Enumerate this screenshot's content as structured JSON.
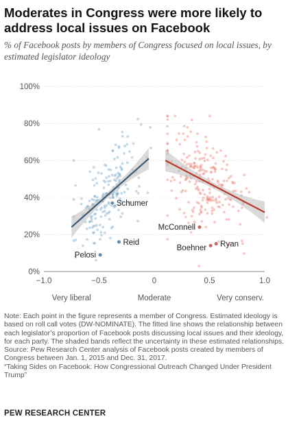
{
  "header": {
    "title": "Moderates in Congress were more likely to address local issues on Facebook",
    "subtitle": "% of Facebook posts by members of Congress focused on local issues, by estimated legislator ideology"
  },
  "footer": {
    "note": "Note: Each point in the figure represents a member of Congress. Estimated ideology is based on roll call votes (DW-NOMINATE). The fitted line shows the relationship between each legislator’s proportion of Facebook posts discussing local issues and their ideology, for each party. The shaded bands reflect the uncertainty in these estimated relationships.",
    "source": "Source: Pew Research Center analysis of Facebook posts created by members of Congress between Jan. 1, 2015 and Dec. 31, 2017.",
    "report": "“Taking Sides on Facebook: How Congressional Outreach Changed Under President Trump”",
    "brand": "PEW RESEARCH CENTER"
  },
  "chart_data": {
    "type": "scatter",
    "xlim": [
      -1.0,
      1.0
    ],
    "ylim": [
      0,
      100
    ],
    "x_ticks": [
      "−1.0",
      "−0.5",
      "0",
      "0.5",
      "1.0"
    ],
    "y_ticks": [
      "0%",
      "20%",
      "40%",
      "60%",
      "80%",
      "100%"
    ],
    "x_ideology_labels": [
      {
        "label": "Very liberal",
        "x": -0.75
      },
      {
        "label": "Moderate",
        "x": 0.0
      },
      {
        "label": "Very conserv.",
        "x": 0.78
      }
    ],
    "grid": true,
    "colors": {
      "democrat": "#7fa8c6",
      "republican": "#e8847b",
      "dem_line": "#3d5a73",
      "rep_line": "#b83a2c",
      "band": "#bbbbbb"
    },
    "series": [
      {
        "party": "democrat",
        "fit_line": [
          [
            -0.75,
            24
          ],
          [
            -0.05,
            61
          ]
        ],
        "x_range": [
          -0.75,
          -0.05
        ],
        "center": [
          -0.42,
          42
        ],
        "n": 200,
        "spread_y": 12,
        "points": []
      },
      {
        "party": "republican",
        "fit_line": [
          [
            0.1,
            60
          ],
          [
            1.0,
            32
          ]
        ],
        "x_range": [
          0.1,
          1.0
        ],
        "center": [
          0.45,
          49
        ],
        "n": 240,
        "spread_y": 12,
        "points": []
      }
    ],
    "highlighted": [
      {
        "name": "Schumer",
        "x": -0.38,
        "y": 37,
        "party": "democrat"
      },
      {
        "name": "Reid",
        "x": -0.32,
        "y": 16,
        "party": "democrat"
      },
      {
        "name": "Pelosi",
        "x": -0.49,
        "y": 9,
        "party": "democrat"
      },
      {
        "name": "McConnell",
        "x": 0.41,
        "y": 24,
        "party": "republican"
      },
      {
        "name": "Boehner",
        "x": 0.51,
        "y": 14,
        "party": "republican"
      },
      {
        "name": "Ryan",
        "x": 0.56,
        "y": 15,
        "party": "republican"
      }
    ]
  }
}
